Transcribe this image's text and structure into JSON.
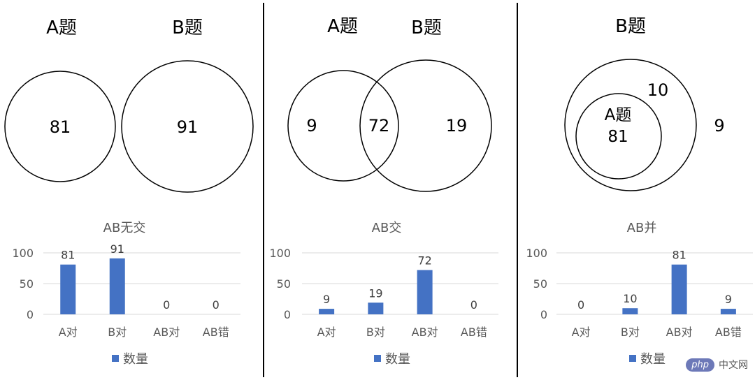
{
  "colors": {
    "bar": "#4472C4",
    "grid": "#d9d9d9",
    "divider": "#000000"
  },
  "venn": [
    {
      "type": "disjoint",
      "top_labels": [
        "A题",
        "B题"
      ],
      "region_labels": [
        "81",
        "91"
      ]
    },
    {
      "type": "intersect",
      "top_labels": [
        "A题",
        "B题"
      ],
      "region_labels": [
        "9",
        "72",
        "19"
      ]
    },
    {
      "type": "subset",
      "top_labels": [
        "B题"
      ],
      "inner_label": "A题",
      "region_labels": [
        "81",
        "10",
        "9"
      ]
    }
  ],
  "chart_data": [
    {
      "type": "bar",
      "title": "AB无交",
      "categories": [
        "A对",
        "B对",
        "AB对",
        "AB错"
      ],
      "series": [
        {
          "name": "数量",
          "values": [
            81,
            91,
            0,
            0
          ]
        }
      ],
      "ylim": [
        0,
        100
      ],
      "yticks": [
        0,
        50,
        100
      ],
      "grid": true,
      "legend": "bottom"
    },
    {
      "type": "bar",
      "title": "AB交",
      "categories": [
        "A对",
        "B对",
        "AB对",
        "AB错"
      ],
      "series": [
        {
          "name": "数量",
          "values": [
            9,
            19,
            72,
            0
          ]
        }
      ],
      "ylim": [
        0,
        100
      ],
      "yticks": [
        0,
        50,
        100
      ],
      "grid": true,
      "legend": "bottom"
    },
    {
      "type": "bar",
      "title": "AB并",
      "categories": [
        "A对",
        "B对",
        "AB对",
        "AB错"
      ],
      "series": [
        {
          "name": "数量",
          "values": [
            0,
            10,
            81,
            9
          ]
        }
      ],
      "ylim": [
        0,
        100
      ],
      "yticks": [
        0,
        50,
        100
      ],
      "grid": true,
      "legend": "bottom"
    }
  ],
  "watermark": {
    "logo": "php",
    "text": "中文网"
  }
}
